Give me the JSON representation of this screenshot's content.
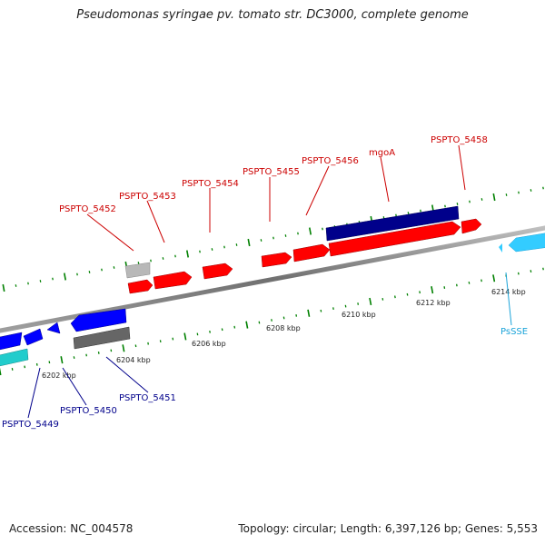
{
  "title": "Pseudomonas syringae pv. tomato str. DC3000, complete genome",
  "footer": {
    "accession": "Accession: NC_004578",
    "summary": "Topology: circular; Length: 6,397,126 bp; Genes: 5,553"
  },
  "scale_labels": [
    "6202 kbp",
    "6204 kbp",
    "6206 kbp",
    "6208 kbp",
    "6210 kbp",
    "6212 kbp",
    "6214 kbp"
  ],
  "gene_labels": {
    "forward": [
      "PSPTO_5452",
      "PSPTO_5453",
      "PSPTO_5454",
      "PSPTO_5455",
      "PSPTO_5456",
      "mgoA",
      "PSPTO_5458"
    ],
    "reverse": [
      "PSPTO_5449",
      "PSPTO_5450",
      "PSPTO_5451",
      "PsSSE"
    ]
  },
  "colors": {
    "forward_gene": "#ff0000",
    "forward_label": "#cc0000",
    "operon_bar": "#00008b",
    "reverse_gene": "#0000ff",
    "reverse_label": "#00008b",
    "rna": "#33ccff",
    "rna_label": "#1aa3d9",
    "pseudo_gray": "#b0b0b0",
    "dark_gray": "#666666",
    "cyan_gene": "#22cccc",
    "backbone": "#808080",
    "tick": "#008000"
  }
}
